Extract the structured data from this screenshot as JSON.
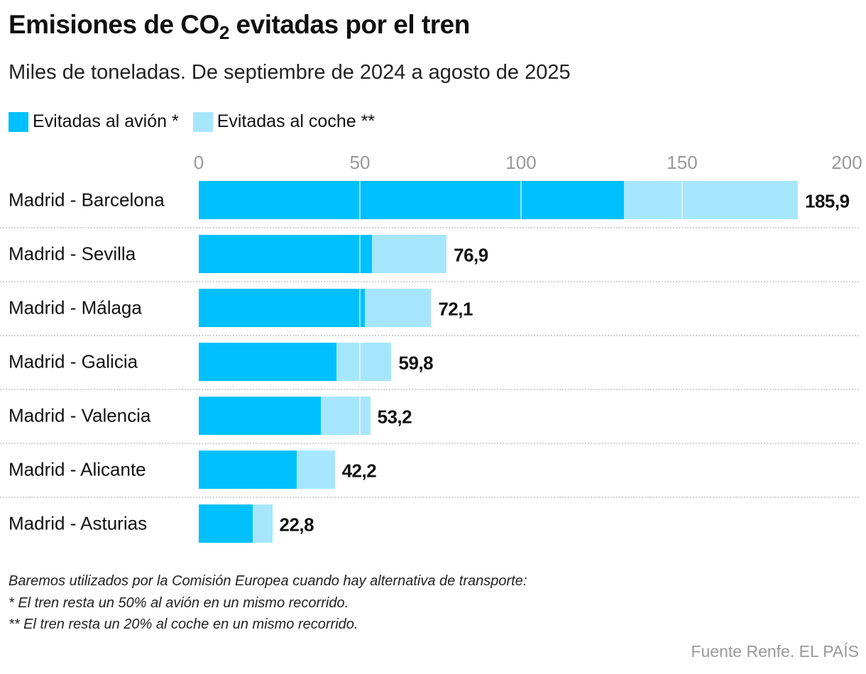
{
  "chart_data": {
    "type": "bar",
    "orientation": "horizontal",
    "stacked": true,
    "title": "Emisiones de CO2 evitadas por el tren",
    "title_parts": {
      "before": "Emisiones de CO",
      "sub": "2",
      "after": " evitadas por el tren"
    },
    "subtitle": "Miles de toneladas. De septiembre de 2024 a agosto de 2025",
    "categories": [
      "Madrid - Barcelona",
      "Madrid - Sevilla",
      "Madrid - Málaga",
      "Madrid - Galicia",
      "Madrid - Valencia",
      "Madrid - Alicante",
      "Madrid - Asturias"
    ],
    "series": [
      {
        "name": "Evitadas al avión *",
        "color": "#00c0ff",
        "values": [
          132.0,
          53.8,
          51.6,
          42.8,
          37.9,
          30.4,
          16.7
        ]
      },
      {
        "name": "Evitadas al coche **",
        "color": "#a6e6fc",
        "values": [
          53.9,
          23.1,
          20.5,
          17.0,
          15.3,
          11.8,
          6.1
        ]
      }
    ],
    "totals": [
      "185,9",
      "76,9",
      "72,1",
      "59,8",
      "53,2",
      "42,2",
      "22,8"
    ],
    "xlim": [
      0,
      200
    ],
    "xticks": [
      "0",
      "50",
      "100",
      "150",
      "200"
    ],
    "legend_position": "top-left",
    "grid": true
  },
  "notes": [
    "Baremos utilizados por la Comisión Europea cuando hay alternativa de transporte:",
    "* El tren resta un 50% al avión en un mismo recorrido.",
    "** El tren resta un 20% al coche en un mismo recorrido."
  ],
  "source": "Fuente Renfe. EL PAÍS"
}
